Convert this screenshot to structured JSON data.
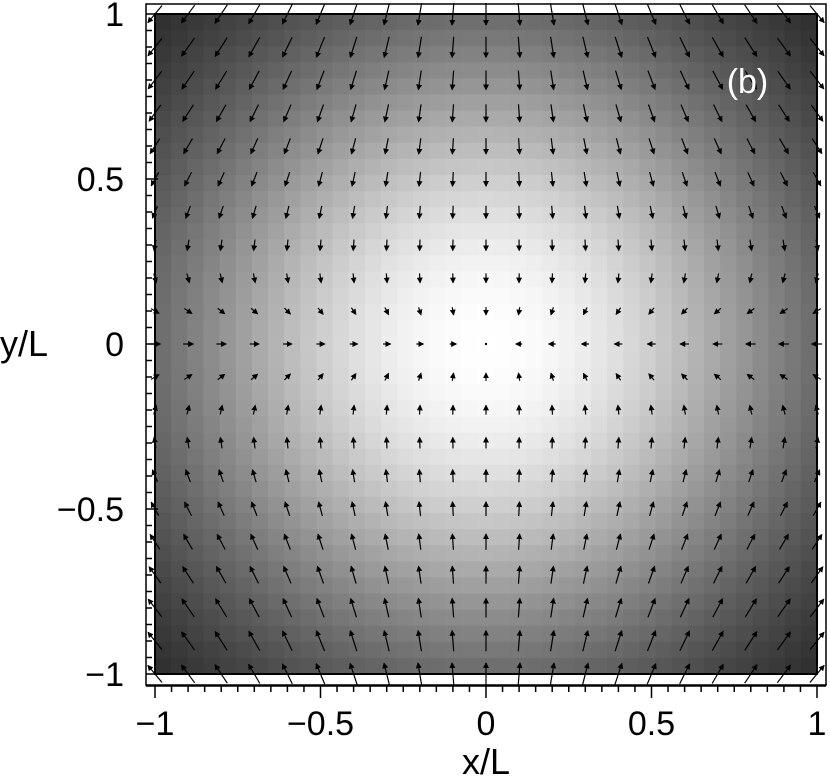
{
  "chart_data": {
    "type": "heatmap",
    "subtype": "vector-field-on-grayscale-heatmap",
    "panel_label": "(b)",
    "xlabel": "x/L",
    "ylabel": "y/L",
    "xlim": [
      -1,
      1
    ],
    "ylim": [
      -1,
      1
    ],
    "x_ticks": [
      -1,
      -0.5,
      0,
      0.5,
      1
    ],
    "y_ticks": [
      -1,
      -0.5,
      0,
      0.5,
      1
    ],
    "x_tick_labels": [
      "−1",
      "−0.5",
      "0",
      "0.5",
      "1"
    ],
    "y_tick_labels": [
      "−1",
      "−0.5",
      "0",
      "0.5",
      "1"
    ],
    "minor_tick_step": 0.05,
    "heatmap": {
      "colormap": "grayscale",
      "max_color": "#ffffff",
      "min_color": "#000000",
      "peak_at": [
        0,
        0
      ],
      "grid_cells": 41,
      "description_values": "intensity maximal (white) at center, decreasing to black at corners"
    },
    "vector_field": {
      "grid": {
        "x_start": -1,
        "x_end": 1,
        "y_start": -1,
        "y_end": 1,
        "n": 21
      },
      "direction_rule": "sign(x)*sign(y) pattern: arrows along x-axis point toward center horizontally; arrows in upper half point down-left on left side and down-right on right side; arrows in lower half point up-left on left and up-right on right",
      "arrow_color": "#000000"
    },
    "grid": false,
    "legend": "none"
  }
}
